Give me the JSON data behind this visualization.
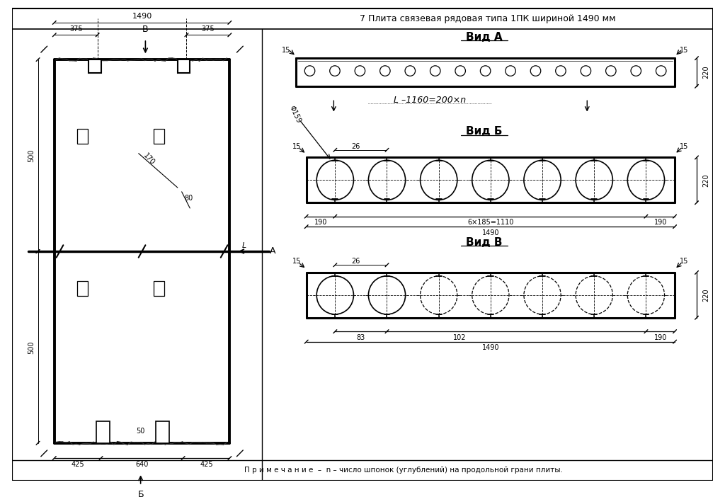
{
  "title": "7 Плита связевая рядовая типа 1ПК шириной 1490 мм",
  "note": "П р и м е ч а н и е  –  n – число шпонок (углублений) на продольной грани плиты.",
  "bg_color": "#ffffff",
  "text_color": "#000000",
  "view_a_label": "Вид А",
  "view_b_label": "Вид Б",
  "view_v_label": "Вид В",
  "dim_1490": "1490",
  "dim_375_left": "375",
  "dim_375_right": "375",
  "dim_500_top": "500",
  "dim_500_bot": "500",
  "dim_170": "170",
  "dim_80": "80",
  "dim_425_left": "425",
  "dim_640": "640",
  "dim_425_right": "425",
  "dim_50": "50",
  "dim_L_formula": "L –1160=200×n",
  "dim_220_a": "220",
  "dim_15_a_left": "15",
  "dim_15_a_right": "15",
  "dim_phi159": "Φ159",
  "dim_26": "26",
  "dim_15_b_left": "15",
  "dim_15_b_right": "15",
  "dim_220_b": "220",
  "dim_190_left_b": "190",
  "dim_6x185": "6×185=1110",
  "dim_190_right_b": "190",
  "dim_1490_b": "1490",
  "dim_15_v_left": "15",
  "dim_15_v_right": "15",
  "dim_26_v": "26",
  "dim_220_v": "220",
  "dim_83": "83",
  "dim_102": "102",
  "dim_190_v": "190",
  "dim_1490_v": "1490",
  "label_L": "L",
  "label_A": "А",
  "label_B_top": "В",
  "label_B_bot": "Б"
}
